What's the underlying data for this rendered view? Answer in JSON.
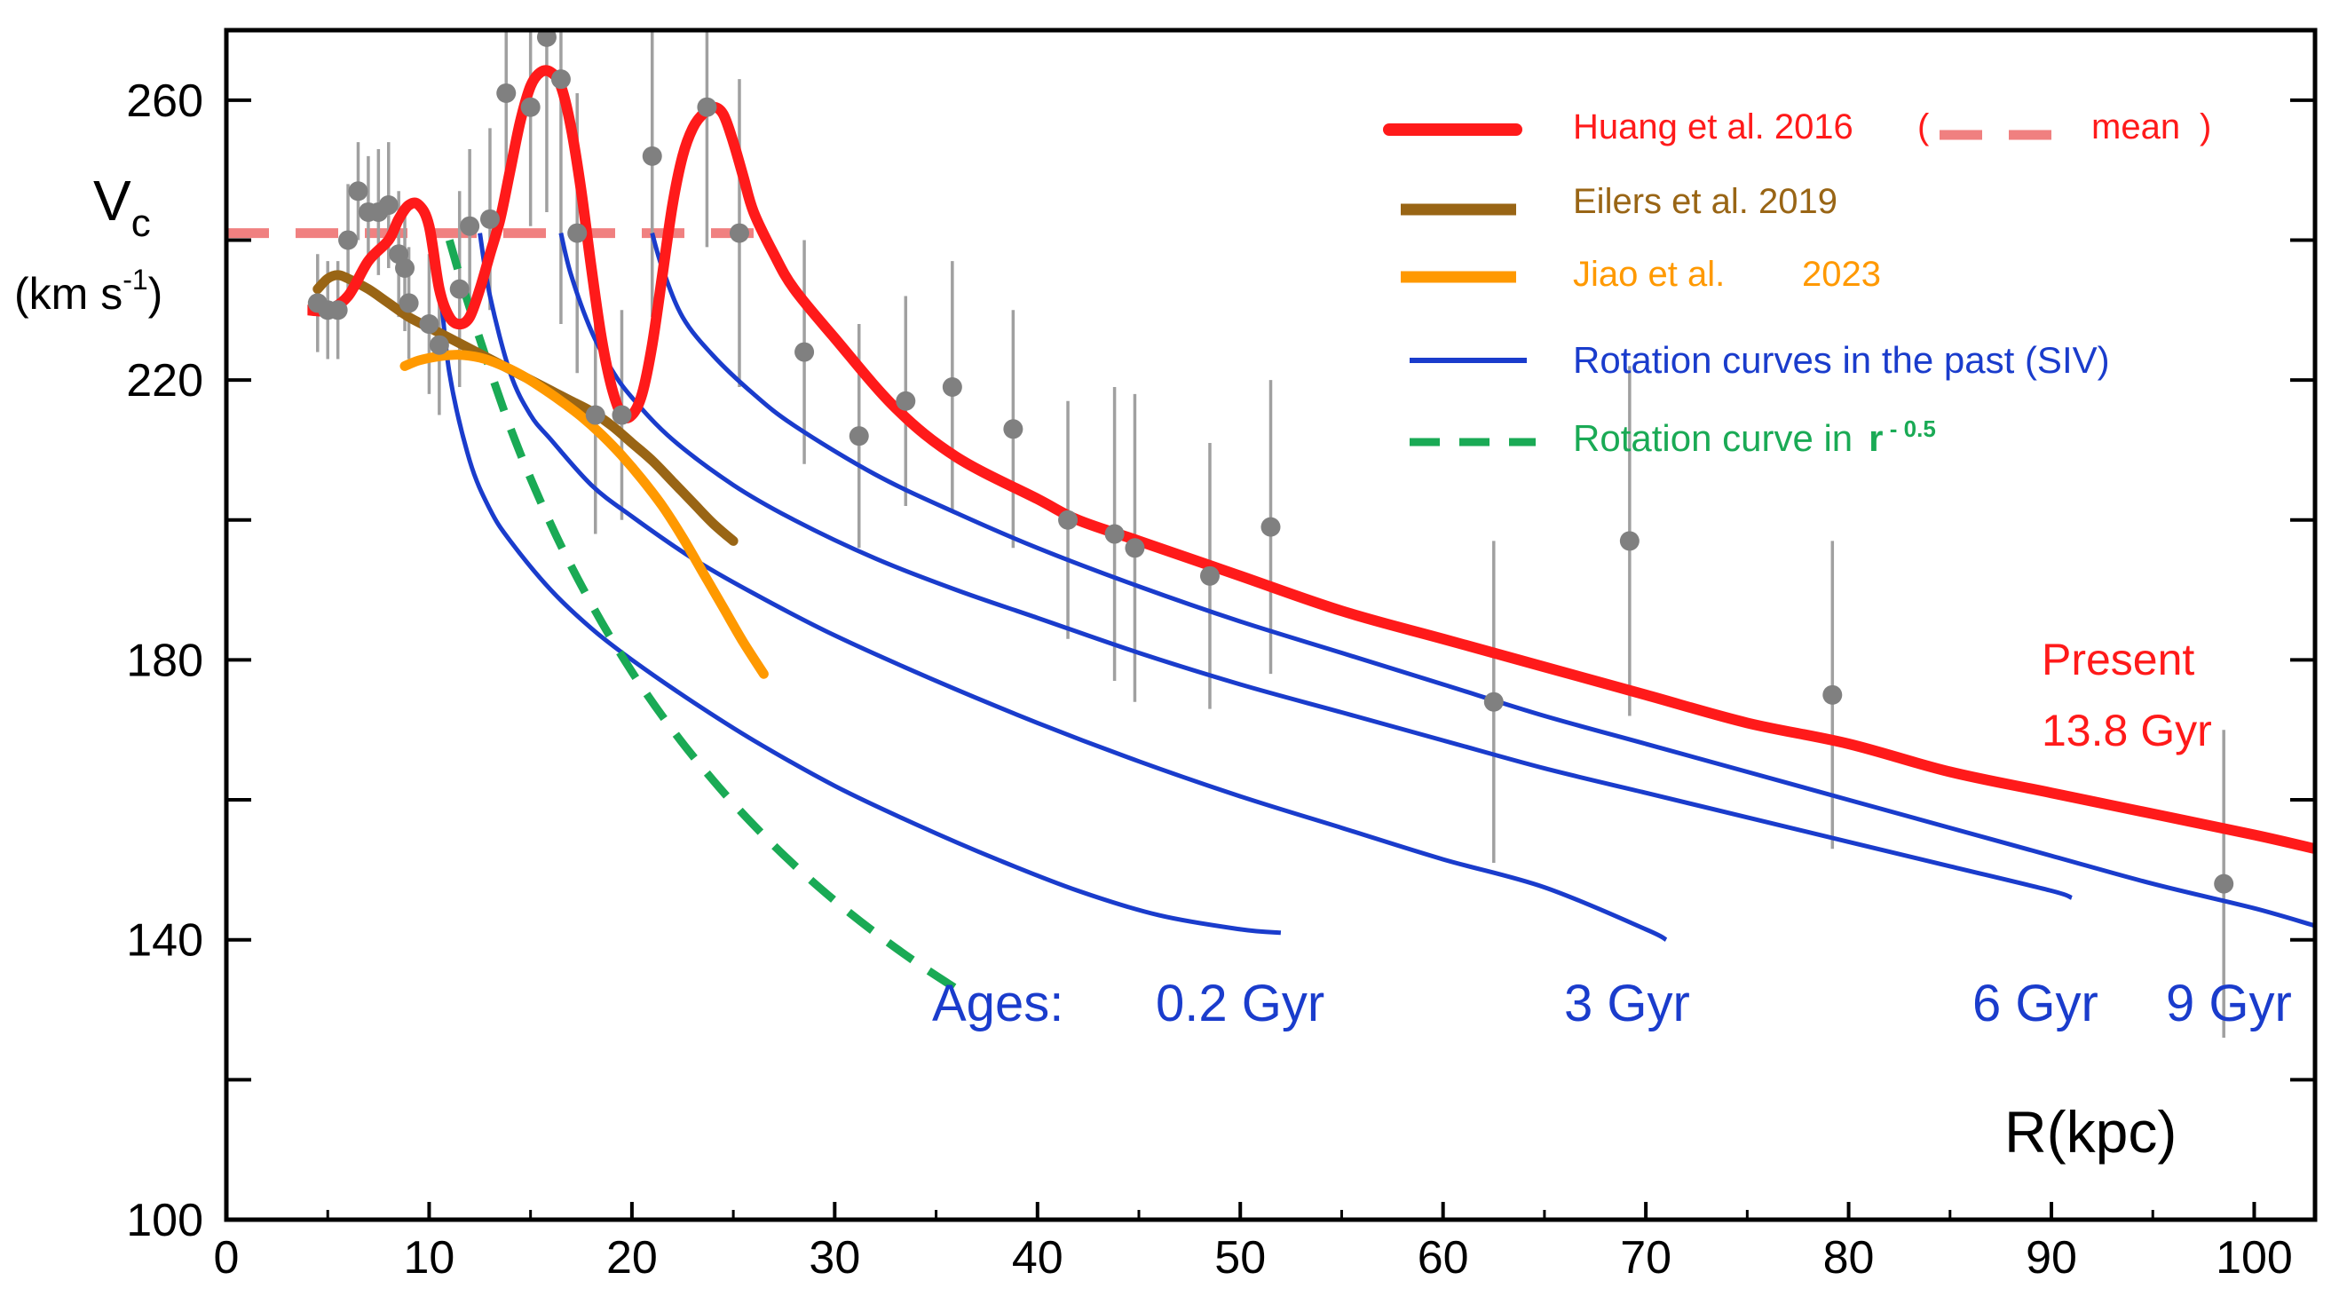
{
  "chart_data": {
    "type": "line",
    "title": "",
    "xlabel": "R(kpc)",
    "ylabel": "V",
    "ylabel_sub": "c",
    "ylabel_units": "(km s",
    "ylabel_units_sup": "-1",
    "ylabel_units_close": ")",
    "xlim": [
      0,
      103
    ],
    "ylim": [
      100,
      270
    ],
    "x_ticks": [
      0,
      10,
      20,
      30,
      40,
      50,
      60,
      70,
      80,
      90,
      100
    ],
    "y_ticks": [
      100,
      140,
      180,
      220,
      260
    ],
    "legend_position": "top-right",
    "colors": {
      "huang": "#ff1a1a",
      "mean": "#f08080",
      "eilers": "#996515",
      "jiao": "#ff9900",
      "siv": "#1a3ccc",
      "r05": "#1aaa55",
      "points": "#808080",
      "errorbars": "#a0a0a0"
    },
    "legend": {
      "huang": "Huang et al. 2016",
      "mean_open": "(",
      "mean": "mean",
      "mean_close": ")",
      "eilers": "Eilers et al.  2019",
      "jiao_a": "Jiao et al.",
      "jiao_b": "2023",
      "siv": "Rotation curves in the past (SIV)",
      "r05": "Rotation curve in",
      "r05_r": "r",
      "r05_exp": " - 0.5"
    },
    "annotations": {
      "present": "Present",
      "present_age": "13.8 Gyr",
      "ages": "Ages:",
      "age_02": "0.2 Gyr",
      "age_3": "3 Gyr",
      "age_6": "6 Gyr",
      "age_9": "9 Gyr"
    },
    "mean_line": {
      "name": "mean",
      "x": [
        0,
        26
      ],
      "y": [
        241,
        241
      ]
    },
    "huang_curve": {
      "name": "Huang et al. 2016",
      "x": [
        4,
        5,
        6,
        7,
        8,
        8.5,
        9,
        9.5,
        10,
        10.5,
        11,
        11.5,
        12,
        12.5,
        13,
        13.5,
        14,
        14.5,
        15,
        15.5,
        16,
        16.5,
        17,
        17.5,
        18,
        18.5,
        19,
        19.5,
        20,
        20.5,
        21,
        21.5,
        22,
        22.5,
        23,
        23.5,
        24,
        24.5,
        25,
        25.5,
        26,
        27,
        28,
        30,
        33,
        36,
        40,
        42,
        45,
        50,
        55,
        60,
        65,
        70,
        75,
        80,
        85,
        90,
        95,
        100,
        103
      ],
      "y": [
        230,
        230,
        232,
        237,
        240,
        243,
        245,
        245,
        242,
        233,
        229,
        228,
        229,
        233,
        238,
        243,
        250,
        257,
        262,
        264,
        264,
        262,
        256,
        247,
        236,
        226,
        219,
        215,
        215,
        218,
        225,
        235,
        245,
        252,
        256,
        258,
        259,
        258,
        254,
        249,
        244,
        238,
        233,
        226,
        216,
        209,
        203,
        200,
        197,
        192,
        187,
        183,
        179,
        175,
        171,
        168,
        164,
        161,
        158,
        155,
        153
      ]
    },
    "eilers_curve": {
      "name": "Eilers et al.  2019",
      "x": [
        4.5,
        5,
        5.5,
        6,
        7,
        8,
        9,
        10,
        11,
        12,
        13,
        14,
        15,
        16,
        17,
        18,
        19,
        20,
        21,
        22,
        23,
        24,
        25
      ],
      "y": [
        233,
        234.5,
        235,
        234.5,
        233,
        231,
        229,
        227.5,
        226,
        224.5,
        223,
        221.5,
        220,
        218.5,
        217,
        215.5,
        213.5,
        211,
        208.5,
        205.5,
        202.5,
        199.5,
        197
      ]
    },
    "jiao_curve": {
      "name": "Jiao et al. 2023",
      "x": [
        8.8,
        9.5,
        10.5,
        11.5,
        12.5,
        13.5,
        14.5,
        15.5,
        16.5,
        17.5,
        18.5,
        19.5,
        20.5,
        21.5,
        22.5,
        23.5,
        24.5,
        25.5,
        26.5
      ],
      "y": [
        222,
        222.8,
        223.4,
        223.6,
        223.2,
        222.2,
        220.8,
        219,
        217,
        214.8,
        212.2,
        209.2,
        205.8,
        202,
        197.5,
        192.5,
        187.5,
        182.5,
        178
      ]
    },
    "r05_curve": {
      "name": "Rotation curve in r - 0.5",
      "x": [
        11,
        12,
        14,
        16,
        18,
        20,
        22,
        24,
        26,
        28,
        30,
        32,
        34,
        36
      ],
      "y": [
        240,
        230.3,
        213.2,
        199.4,
        188,
        178.3,
        170,
        162.8,
        156.4,
        150.7,
        145.6,
        141,
        136.8,
        133
      ]
    },
    "siv_curves": [
      {
        "name": "0.2 Gyr",
        "x": [
          10.5,
          11,
          12,
          13,
          14,
          16,
          18,
          20,
          23,
          26,
          30,
          34,
          38,
          42,
          46,
          50,
          52
        ],
        "y": [
          235,
          221,
          208.5,
          201.5,
          197,
          190,
          184.5,
          180,
          174,
          168.5,
          162,
          156.5,
          151.5,
          147,
          143.5,
          141.5,
          141
        ]
      },
      {
        "name": "3 Gyr",
        "x": [
          12.5,
          13,
          14,
          15,
          16,
          18,
          20,
          23,
          26,
          30,
          35,
          40,
          45,
          50,
          55,
          60,
          65,
          70,
          71
        ],
        "y": [
          241,
          232,
          221,
          215,
          211.5,
          205,
          200.5,
          194.5,
          189.5,
          183.5,
          177,
          171,
          165.5,
          160.5,
          156,
          151.5,
          147.5,
          141.5,
          140
        ]
      },
      {
        "name": "6 Gyr",
        "x": [
          16.5,
          17,
          18,
          19,
          20,
          22,
          25,
          28,
          32,
          36,
          40,
          45,
          50,
          55,
          60,
          65,
          70,
          75,
          80,
          85,
          90,
          91
        ],
        "y": [
          241,
          235,
          227,
          221.5,
          217.5,
          211.5,
          205,
          200,
          194.5,
          190,
          186,
          181,
          176.5,
          172.5,
          168.5,
          164.5,
          161,
          157.5,
          154,
          150.5,
          147,
          146
        ]
      },
      {
        "name": "9 Gyr",
        "x": [
          21,
          21.5,
          22.5,
          24,
          26,
          28,
          32,
          36,
          40,
          45,
          50,
          55,
          60,
          65,
          70,
          75,
          80,
          85,
          90,
          95,
          100,
          103
        ],
        "y": [
          241,
          236,
          229,
          223.5,
          218,
          213.5,
          206.5,
          201,
          196,
          190.5,
          185.5,
          181,
          176.5,
          172,
          168,
          164,
          160,
          156,
          152,
          148,
          144.5,
          142
        ]
      }
    ],
    "data_points": [
      {
        "x": 4.5,
        "y": 231,
        "yerr": 7
      },
      {
        "x": 5,
        "y": 230,
        "yerr": 7
      },
      {
        "x": 5.5,
        "y": 230,
        "yerr": 7
      },
      {
        "x": 6,
        "y": 240,
        "yerr": 8
      },
      {
        "x": 6.5,
        "y": 247,
        "yerr": 7
      },
      {
        "x": 7,
        "y": 244,
        "yerr": 8
      },
      {
        "x": 7.5,
        "y": 244,
        "yerr": 9
      },
      {
        "x": 8,
        "y": 245,
        "yerr": 9
      },
      {
        "x": 8.5,
        "y": 238,
        "yerr": 9
      },
      {
        "x": 8.8,
        "y": 236,
        "yerr": 9
      },
      {
        "x": 9,
        "y": 231,
        "yerr": 8
      },
      {
        "x": 10,
        "y": 228,
        "yerr": 10
      },
      {
        "x": 10.5,
        "y": 225,
        "yerr": 10
      },
      {
        "x": 11.5,
        "y": 233,
        "yerr": 14
      },
      {
        "x": 12,
        "y": 242,
        "yerr": 11
      },
      {
        "x": 13,
        "y": 243,
        "yerr": 13
      },
      {
        "x": 13.8,
        "y": 261,
        "yerr": 15
      },
      {
        "x": 15,
        "y": 259,
        "yerr": 17
      },
      {
        "x": 15.8,
        "y": 269,
        "yerr": 25
      },
      {
        "x": 16.5,
        "y": 263,
        "yerr": 35
      },
      {
        "x": 17.3,
        "y": 241,
        "yerr": 20
      },
      {
        "x": 18.2,
        "y": 215,
        "yerr": 17
      },
      {
        "x": 19.5,
        "y": 215,
        "yerr": 15
      },
      {
        "x": 21,
        "y": 252,
        "yerr": 23
      },
      {
        "x": 23.7,
        "y": 259,
        "yerr": 20
      },
      {
        "x": 25.3,
        "y": 241,
        "yerr": 22
      },
      {
        "x": 28.5,
        "y": 224,
        "yerr": 16
      },
      {
        "x": 31.2,
        "y": 212,
        "yerr": 16
      },
      {
        "x": 33.5,
        "y": 217,
        "yerr": 15
      },
      {
        "x": 35.8,
        "y": 219,
        "yerr": 18
      },
      {
        "x": 38.8,
        "y": 213,
        "yerr": 17
      },
      {
        "x": 41.5,
        "y": 200,
        "yerr": 17
      },
      {
        "x": 43.8,
        "y": 198,
        "yerr": 21
      },
      {
        "x": 44.8,
        "y": 196,
        "yerr": 22
      },
      {
        "x": 48.5,
        "y": 192,
        "yerr": 19
      },
      {
        "x": 51.5,
        "y": 199,
        "yerr": 21
      },
      {
        "x": 62.5,
        "y": 174,
        "yerr": 23
      },
      {
        "x": 69.2,
        "y": 197,
        "yerr": 25
      },
      {
        "x": 79.2,
        "y": 175,
        "yerr": 22
      },
      {
        "x": 98.5,
        "y": 148,
        "yerr": 22
      }
    ]
  }
}
